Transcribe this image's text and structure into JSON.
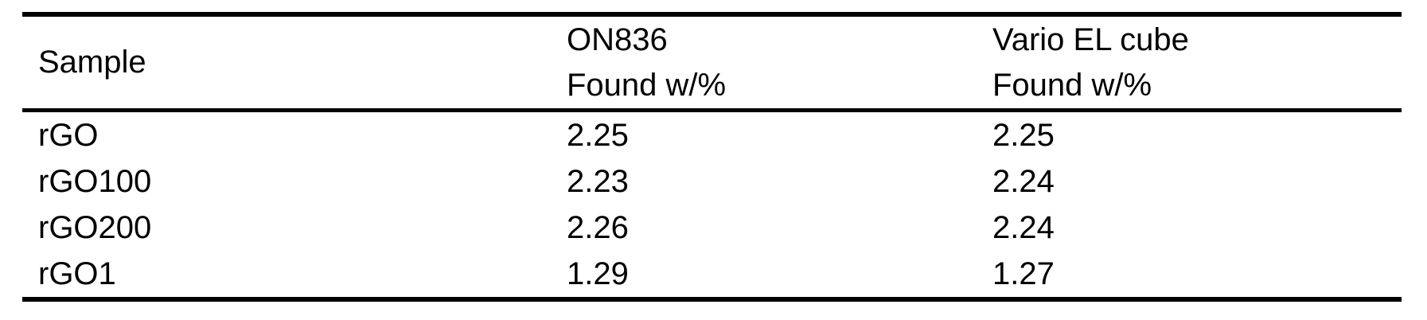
{
  "table": {
    "header": {
      "col1": {
        "line1": "Sample"
      },
      "col2": {
        "line1": "ON836",
        "line2": "Found w/%"
      },
      "col3": {
        "line1": "Vario EL cube",
        "line2": "Found w/%"
      }
    },
    "rows": [
      {
        "sample": "rGO",
        "on836_found": "2.25",
        "vario_found": "2.25"
      },
      {
        "sample": "rGO100",
        "on836_found": "2.23",
        "vario_found": "2.24"
      },
      {
        "sample": "rGO200",
        "on836_found": "2.26",
        "vario_found": "2.24"
      },
      {
        "sample": "rGO1",
        "on836_found": "1.29",
        "vario_found": "1.27"
      }
    ],
    "colors": {
      "text": "#000000",
      "rule": "#000000",
      "background": "#ffffff"
    }
  }
}
